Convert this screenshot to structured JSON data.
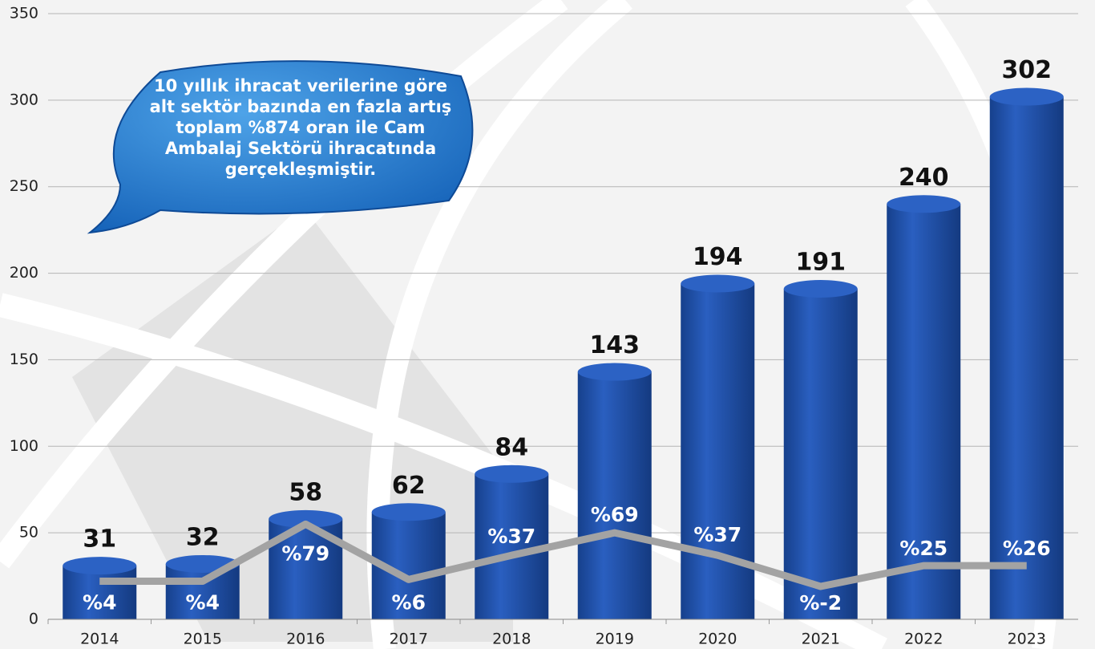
{
  "chart_data": {
    "type": "bar",
    "categories": [
      "2014",
      "2015",
      "2016",
      "2017",
      "2018",
      "2019",
      "2020",
      "2021",
      "2022",
      "2023"
    ],
    "values": [
      31,
      32,
      58,
      62,
      84,
      143,
      194,
      191,
      240,
      302
    ],
    "color": "#1d4fa6",
    "line": {
      "color": "#a3a3a3",
      "values": [
        22,
        22,
        55,
        23,
        37,
        50,
        37,
        19,
        31,
        31
      ],
      "labels": [
        "%4",
        "%4",
        "%79",
        "%6",
        "%37",
        "%69",
        "%37",
        "%-2",
        "%25",
        "%26"
      ]
    },
    "ylim": [
      0,
      350
    ],
    "yticks": [
      0,
      50,
      100,
      150,
      200,
      250,
      300,
      350
    ],
    "grid": true,
    "annotation": [
      "10 yıllık ihracat verilerine göre",
      "alt sektör bazında en fazla artış",
      "toplam %874 oran ile Cam",
      "Ambalaj Sektörü ihracatında",
      "gerçekleşmiştir."
    ]
  }
}
